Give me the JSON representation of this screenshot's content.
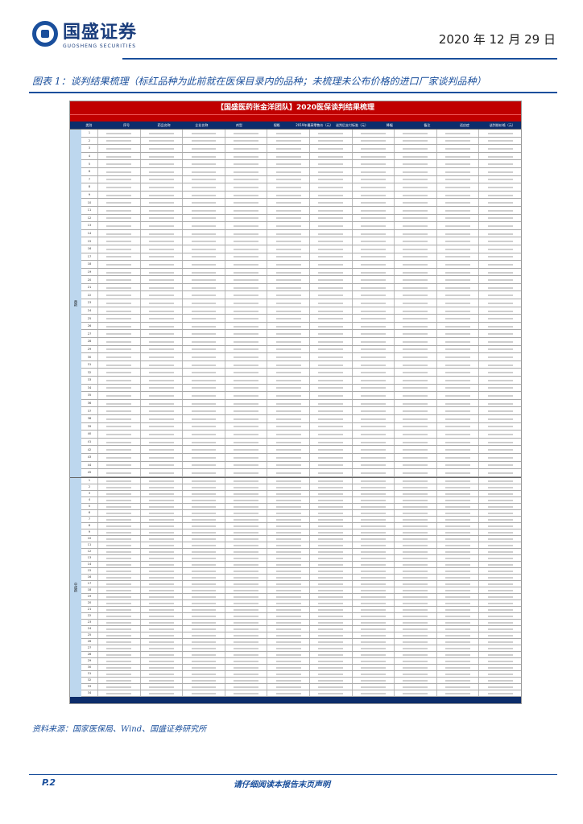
{
  "header": {
    "brand_cn": "国盛证券",
    "brand_en": "GUOSHENG SECURITIES",
    "date": "2020 年 12 月 29 日"
  },
  "figure": {
    "title": "图表 1：谈判结果梳理（标红品种为此前就在医保目录内的品种；未梳理未公布价格的进口厂家谈判品种）"
  },
  "table": {
    "title": "【国盛医药张金洋团队】2020医保谈判结果梳理",
    "columns": [
      "类别",
      "序号",
      "药品名称",
      "企业名称",
      "剂型",
      "规格",
      "2019年最高零售价（元）",
      "谈判后支付标准（元）",
      "降幅",
      "备注",
      "适应症",
      "谈判前价格（元）"
    ],
    "sections": [
      {
        "category": "西药",
        "rows": [
          "1",
          "2",
          "3",
          "4",
          "5",
          "6",
          "7",
          "8",
          "9",
          "10",
          "11",
          "12",
          "13",
          "14",
          "15",
          "16",
          "17",
          "18",
          "19",
          "20",
          "21",
          "22",
          "23",
          "24",
          "25",
          "26",
          "27",
          "28",
          "29",
          "30",
          "31",
          "32",
          "33",
          "34",
          "35",
          "36",
          "37",
          "38",
          "39",
          "40",
          "41",
          "42",
          "43",
          "44",
          "45"
        ],
        "red_rows": [
          "1",
          "11",
          "13",
          "28"
        ]
      },
      {
        "category": "中成药",
        "rows": [
          "1",
          "2",
          "3",
          "4",
          "5",
          "6",
          "7",
          "8",
          "9",
          "10",
          "11",
          "12",
          "13",
          "14",
          "15",
          "16",
          "17",
          "18",
          "19",
          "20",
          "21",
          "22",
          "23",
          "24",
          "25",
          "26",
          "27",
          "28",
          "29",
          "30",
          "31",
          "32",
          "33",
          "34"
        ],
        "red_rows": [
          "14"
        ]
      }
    ]
  },
  "source": "资料来源：国家医保局、Wind、国盛证券研究所",
  "footer": {
    "page": "P.2",
    "disclaimer": "请仔细阅读本报告末页声明"
  },
  "colors": {
    "brand_blue": "#1a4f9c",
    "table_red": "#c00000",
    "header_navy": "#0d2d6b",
    "category_blue": "#bdd7ee"
  }
}
